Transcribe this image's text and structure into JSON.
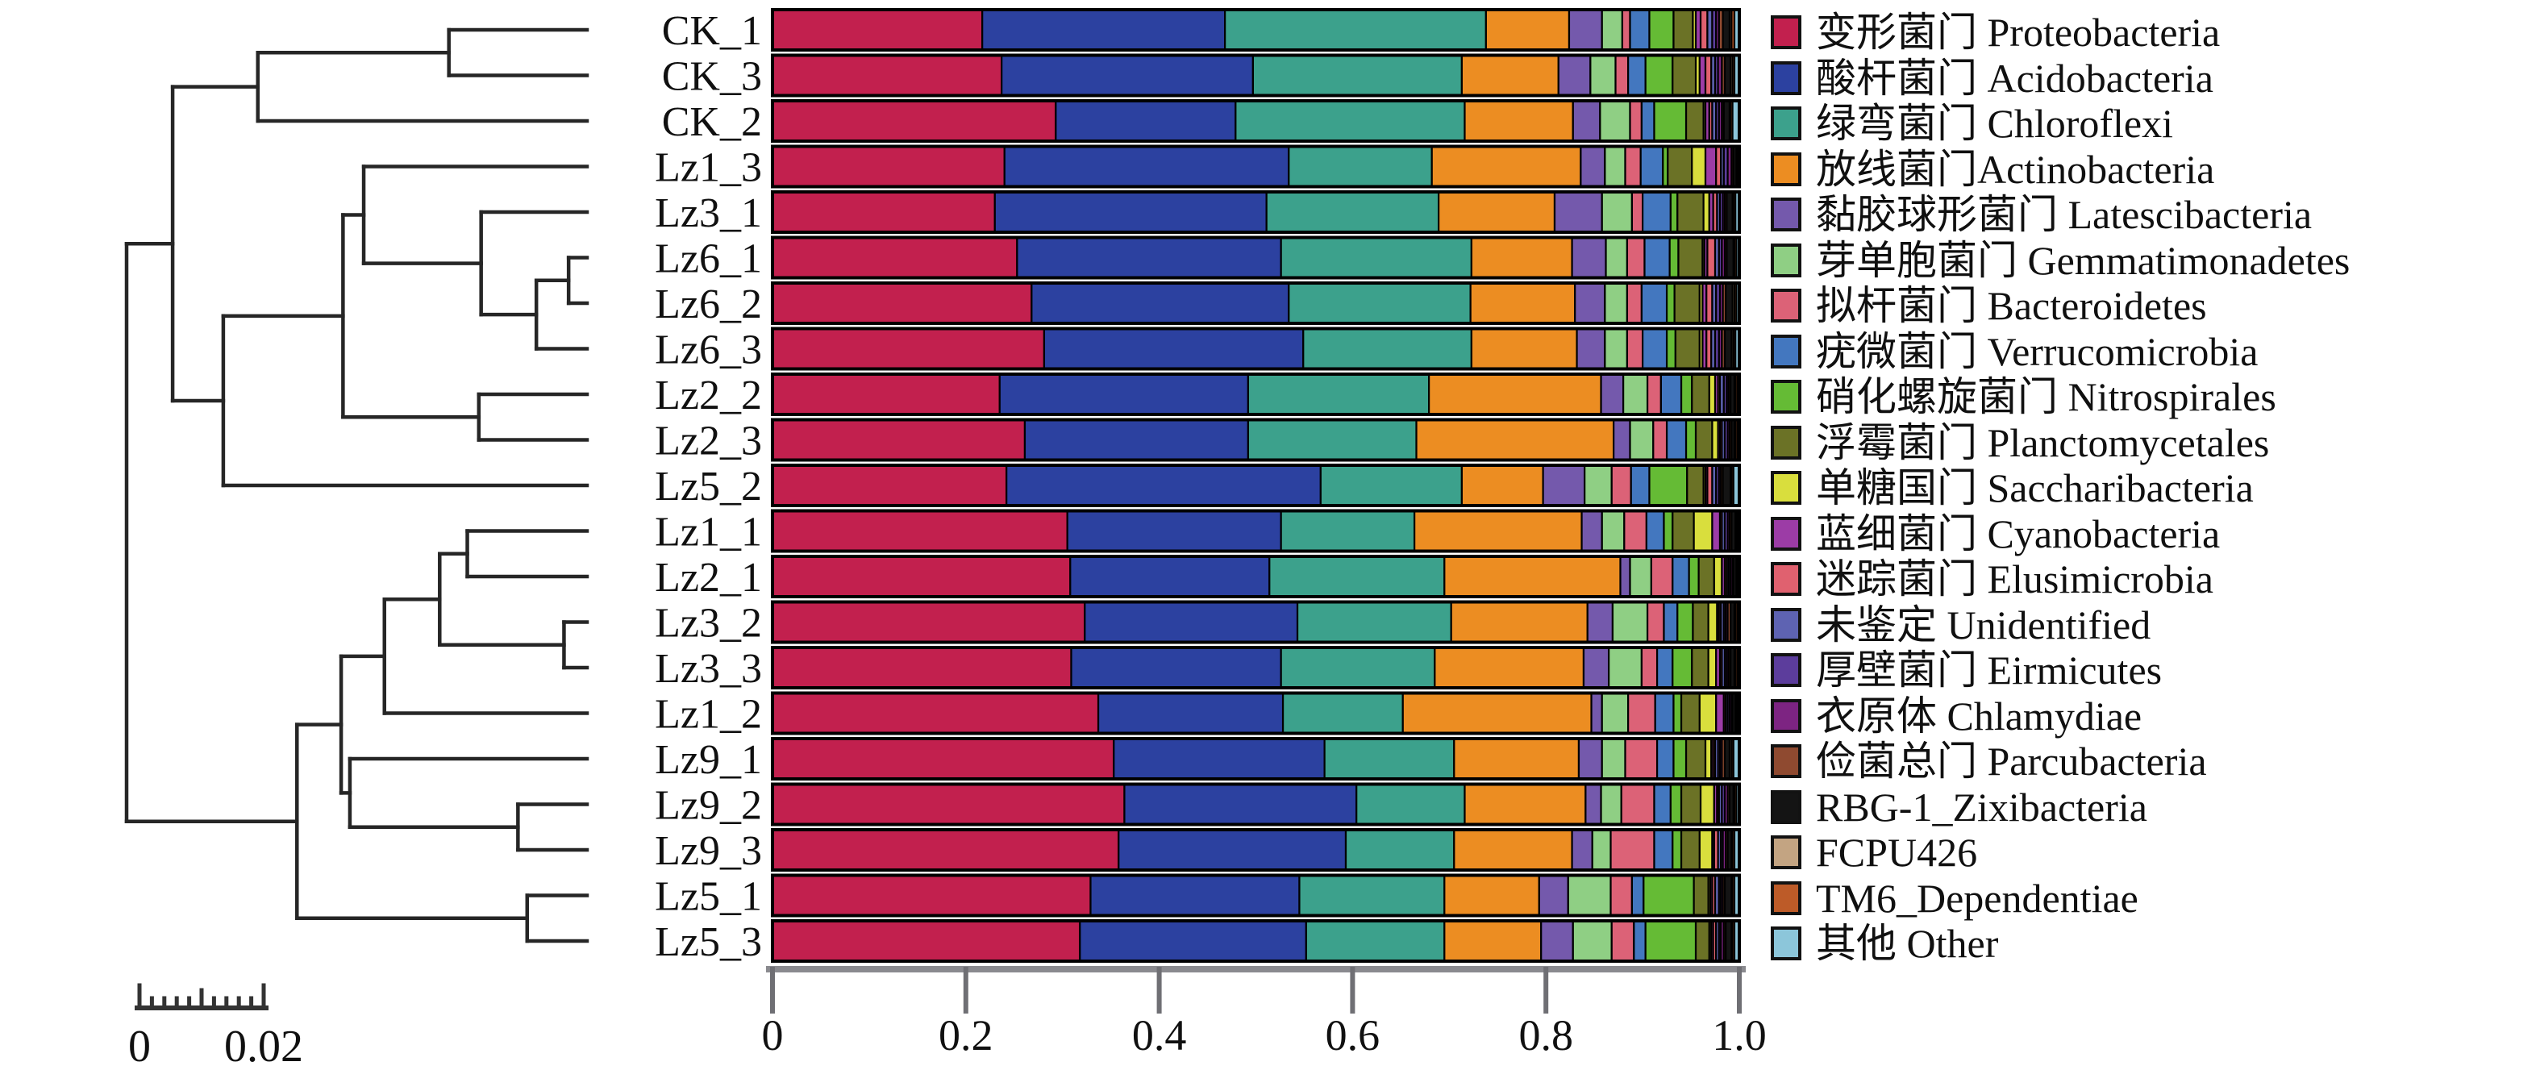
{
  "figure": {
    "background": "#ffffff",
    "description": "Hierarchical clustering dendrogram of soil samples with stacked-bar relative abundance of bacterial phyla and bilingual legend"
  },
  "chart_data": {
    "type": "bar",
    "orientation": "horizontal",
    "stacked": true,
    "title": "",
    "xlabel": "",
    "ylabel": "",
    "xlim": [
      0,
      1
    ],
    "x_ticks": [
      "0",
      "0.2",
      "0.4",
      "0.6",
      "0.8",
      "1.0"
    ],
    "x_tick_values": [
      0,
      0.2,
      0.4,
      0.6,
      0.8,
      1.0
    ],
    "grid": false,
    "legend_position": "right",
    "categories": [
      "CK_1",
      "CK_3",
      "CK_2",
      "Lz1_3",
      "Lz3_1",
      "Lz6_1",
      "Lz6_2",
      "Lz6_3",
      "Lz2_2",
      "Lz2_3",
      "Lz5_2",
      "Lz1_1",
      "Lz2_1",
      "Lz3_2",
      "Lz3_3",
      "Lz1_2",
      "Lz9_1",
      "Lz9_2",
      "Lz9_3",
      "Lz5_1",
      "Lz5_3"
    ],
    "phyla": [
      {
        "label": "变形菌门 Proteobacteria",
        "color": "#C2204E"
      },
      {
        "label": "酸杆菌门 Acidobacteria",
        "color": "#2C41A0"
      },
      {
        "label": "绿弯菌门 Chloroflexi",
        "color": "#3CA18C"
      },
      {
        "label": "放线菌门Actinobacteria",
        "color": "#EC8D22"
      },
      {
        "label": "黏胶球形菌门 Latescibacteria",
        "color": "#7459AC"
      },
      {
        "label": "芽单胞菌门 Gemmatimonadetes",
        "color": "#8FCF84"
      },
      {
        "label": "拟杆菌门 Bacteroidetes",
        "color": "#DC6277"
      },
      {
        "label": "疣微菌门 Verrucomicrobia",
        "color": "#4377BF"
      },
      {
        "label": "硝化螺旋菌门 Nitrospirales",
        "color": "#65BB35"
      },
      {
        "label": "浮霉菌门 Planctomycetales",
        "color": "#6B7226"
      },
      {
        "label": "单糖国门 Saccharibacteria",
        "color": "#D9DE3D"
      },
      {
        "label": "蓝细菌门 Cyanobacteria",
        "color": "#9C3CA6"
      },
      {
        "label": "迷踪菌门 Elusimicrobia",
        "color": "#E0616F"
      },
      {
        "label": "未鉴定 Unidentified",
        "color": "#5E63B2"
      },
      {
        "label": "厚壁菌门 Eirmicutes",
        "color": "#5C3D9C"
      },
      {
        "label": "衣原体 Chlamydiae",
        "color": "#7D2482"
      },
      {
        "label": "俭菌总门 Parcubacteria",
        "color": "#8F4A30"
      },
      {
        "label": "RBG-1_Zixibacteria",
        "color": "#141414"
      },
      {
        "label": "FCPU426",
        "color": "#C3A482"
      },
      {
        "label": "TM6_Dependentiae",
        "color": "#BD5B28"
      },
      {
        "label": "其他 Other",
        "color": "#8CC6DA"
      }
    ],
    "samples": [
      {
        "label": "CK_1",
        "values": [
          0.217,
          0.251,
          0.27,
          0.086,
          0.034,
          0.021,
          0.008,
          0.02,
          0.025,
          0.02,
          0.003,
          0.005,
          0.007,
          0.005,
          0.004,
          0.003,
          0.004,
          0.007,
          0.002,
          0.003,
          0.005
        ]
      },
      {
        "label": "CK_3",
        "values": [
          0.237,
          0.26,
          0.216,
          0.1,
          0.033,
          0.026,
          0.013,
          0.018,
          0.028,
          0.024,
          0.004,
          0.006,
          0.006,
          0.004,
          0.003,
          0.004,
          0.003,
          0.006,
          0.002,
          0.002,
          0.005
        ]
      },
      {
        "label": "CK_2",
        "values": [
          0.293,
          0.186,
          0.237,
          0.112,
          0.028,
          0.031,
          0.012,
          0.013,
          0.033,
          0.018,
          0.002,
          0.004,
          0.003,
          0.004,
          0.003,
          0.003,
          0.002,
          0.006,
          0.001,
          0.002,
          0.007
        ]
      },
      {
        "label": "Lz1_3",
        "values": [
          0.24,
          0.294,
          0.148,
          0.154,
          0.025,
          0.021,
          0.016,
          0.023,
          0.005,
          0.025,
          0.014,
          0.011,
          0.005,
          0.003,
          0.004,
          0.004,
          0.002,
          0.003,
          0.001,
          0.001,
          0.001
        ]
      },
      {
        "label": "Lz3_1",
        "values": [
          0.23,
          0.281,
          0.178,
          0.12,
          0.049,
          0.031,
          0.011,
          0.029,
          0.007,
          0.027,
          0.006,
          0.004,
          0.004,
          0.003,
          0.003,
          0.002,
          0.002,
          0.006,
          0.001,
          0.002,
          0.004
        ]
      },
      {
        "label": "Lz6_1",
        "values": [
          0.253,
          0.273,
          0.197,
          0.104,
          0.035,
          0.022,
          0.018,
          0.026,
          0.009,
          0.025,
          0.002,
          0.003,
          0.008,
          0.004,
          0.003,
          0.003,
          0.002,
          0.007,
          0.001,
          0.002,
          0.003
        ]
      },
      {
        "label": "Lz6_2",
        "values": [
          0.268,
          0.266,
          0.188,
          0.108,
          0.031,
          0.023,
          0.015,
          0.026,
          0.008,
          0.026,
          0.003,
          0.004,
          0.006,
          0.004,
          0.004,
          0.003,
          0.003,
          0.007,
          0.002,
          0.002,
          0.003
        ]
      },
      {
        "label": "Lz6_3",
        "values": [
          0.281,
          0.268,
          0.174,
          0.109,
          0.029,
          0.023,
          0.016,
          0.025,
          0.009,
          0.025,
          0.003,
          0.004,
          0.005,
          0.004,
          0.004,
          0.003,
          0.003,
          0.007,
          0.002,
          0.002,
          0.004
        ]
      },
      {
        "label": "Lz2_2",
        "values": [
          0.235,
          0.257,
          0.187,
          0.178,
          0.023,
          0.025,
          0.014,
          0.021,
          0.011,
          0.018,
          0.006,
          0.003,
          0.002,
          0.004,
          0.003,
          0.002,
          0.002,
          0.004,
          0.001,
          0.002,
          0.002
        ]
      },
      {
        "label": "Lz2_3",
        "values": [
          0.261,
          0.231,
          0.174,
          0.204,
          0.017,
          0.024,
          0.014,
          0.02,
          0.01,
          0.017,
          0.006,
          0.002,
          0.002,
          0.003,
          0.003,
          0.002,
          0.002,
          0.003,
          0.001,
          0.002,
          0.002
        ]
      },
      {
        "label": "Lz5_2",
        "values": [
          0.242,
          0.325,
          0.146,
          0.084,
          0.043,
          0.028,
          0.02,
          0.019,
          0.039,
          0.017,
          0.002,
          0.002,
          0.005,
          0.004,
          0.003,
          0.002,
          0.002,
          0.008,
          0.001,
          0.002,
          0.006
        ]
      },
      {
        "label": "Lz1_1",
        "values": [
          0.305,
          0.221,
          0.138,
          0.173,
          0.021,
          0.023,
          0.023,
          0.018,
          0.009,
          0.022,
          0.019,
          0.008,
          0.002,
          0.003,
          0.003,
          0.002,
          0.002,
          0.004,
          0.001,
          0.001,
          0.002
        ]
      },
      {
        "label": "Lz2_1",
        "values": [
          0.308,
          0.206,
          0.181,
          0.182,
          0.01,
          0.022,
          0.022,
          0.017,
          0.01,
          0.016,
          0.008,
          0.003,
          0.002,
          0.002,
          0.002,
          0.002,
          0.001,
          0.003,
          0.001,
          0.001,
          0.001
        ]
      },
      {
        "label": "Lz3_2",
        "values": [
          0.323,
          0.22,
          0.159,
          0.141,
          0.026,
          0.036,
          0.017,
          0.014,
          0.016,
          0.016,
          0.009,
          0.002,
          0.002,
          0.003,
          0.002,
          0.002,
          0.003,
          0.004,
          0.001,
          0.002,
          0.002
        ]
      },
      {
        "label": "Lz3_3",
        "values": [
          0.309,
          0.217,
          0.159,
          0.154,
          0.026,
          0.034,
          0.016,
          0.016,
          0.02,
          0.017,
          0.008,
          0.004,
          0.002,
          0.003,
          0.002,
          0.002,
          0.002,
          0.004,
          0.001,
          0.002,
          0.002
        ]
      },
      {
        "label": "Lz1_2",
        "values": [
          0.337,
          0.191,
          0.124,
          0.195,
          0.011,
          0.027,
          0.028,
          0.019,
          0.008,
          0.019,
          0.017,
          0.008,
          0.002,
          0.002,
          0.002,
          0.002,
          0.001,
          0.003,
          0.001,
          0.001,
          0.002
        ]
      },
      {
        "label": "Lz9_1",
        "values": [
          0.353,
          0.218,
          0.134,
          0.129,
          0.024,
          0.024,
          0.033,
          0.017,
          0.013,
          0.02,
          0.006,
          0.002,
          0.002,
          0.003,
          0.002,
          0.002,
          0.003,
          0.005,
          0.002,
          0.002,
          0.006
        ]
      },
      {
        "label": "Lz9_2",
        "values": [
          0.364,
          0.24,
          0.112,
          0.125,
          0.016,
          0.021,
          0.034,
          0.017,
          0.011,
          0.02,
          0.014,
          0.003,
          0.002,
          0.003,
          0.003,
          0.003,
          0.002,
          0.004,
          0.001,
          0.002,
          0.003
        ]
      },
      {
        "label": "Lz9_3",
        "values": [
          0.358,
          0.235,
          0.112,
          0.122,
          0.021,
          0.019,
          0.045,
          0.019,
          0.009,
          0.019,
          0.013,
          0.002,
          0.004,
          0.003,
          0.002,
          0.003,
          0.002,
          0.004,
          0.001,
          0.002,
          0.005
        ]
      },
      {
        "label": "Lz5_1",
        "values": [
          0.329,
          0.216,
          0.15,
          0.098,
          0.03,
          0.044,
          0.022,
          0.012,
          0.052,
          0.015,
          0.002,
          0.002,
          0.003,
          0.004,
          0.002,
          0.002,
          0.002,
          0.007,
          0.001,
          0.002,
          0.005
        ]
      },
      {
        "label": "Lz5_3",
        "values": [
          0.318,
          0.234,
          0.143,
          0.1,
          0.033,
          0.04,
          0.023,
          0.012,
          0.052,
          0.014,
          0.002,
          0.002,
          0.003,
          0.003,
          0.002,
          0.003,
          0.002,
          0.006,
          0.001,
          0.002,
          0.005
        ]
      }
    ],
    "dendrogram": {
      "line_color": "#262626",
      "scale_bar": {
        "labels": [
          "0",
          "0.02"
        ],
        "range": [
          0,
          0.02
        ],
        "minor_step": 0.002
      },
      "tree": {
        "x": 0.0,
        "children": [
          {
            "x": 0.1,
            "children": [
              {
                "x": 0.285,
                "children": [
                  {
                    "x": 0.7,
                    "children": [
                      {
                        "leaf": 0
                      },
                      {
                        "leaf": 1
                      }
                    ]
                  },
                  {
                    "leaf": 2
                  }
                ]
              },
              {
                "x": 0.21,
                "children": [
                  {
                    "x": 0.47,
                    "children": [
                      {
                        "x": 0.515,
                        "children": [
                          {
                            "leaf": 3
                          },
                          {
                            "x": 0.77,
                            "children": [
                              {
                                "leaf": 4
                              },
                              {
                                "x": 0.89,
                                "children": [
                                  {
                                    "x": 0.96,
                                    "children": [
                                      {
                                        "leaf": 5
                                      },
                                      {
                                        "leaf": 6
                                      }
                                    ]
                                  },
                                  {
                                    "leaf": 7
                                  }
                                ]
                              }
                            ]
                          }
                        ]
                      },
                      {
                        "x": 0.765,
                        "children": [
                          {
                            "leaf": 8
                          },
                          {
                            "leaf": 9
                          }
                        ]
                      }
                    ]
                  },
                  {
                    "leaf": 10
                  }
                ]
              }
            ]
          },
          {
            "x": 0.37,
            "children": [
              {
                "x": 0.466,
                "children": [
                  {
                    "x": 0.56,
                    "children": [
                      {
                        "x": 0.68,
                        "children": [
                          {
                            "x": 0.74,
                            "children": [
                              {
                                "leaf": 11
                              },
                              {
                                "leaf": 12
                              }
                            ]
                          },
                          {
                            "x": 0.95,
                            "children": [
                              {
                                "leaf": 13
                              },
                              {
                                "leaf": 14
                              }
                            ]
                          }
                        ]
                      },
                      {
                        "leaf": 15
                      }
                    ]
                  },
                  {
                    "x": 0.485,
                    "children": [
                      {
                        "leaf": 16
                      },
                      {
                        "x": 0.85,
                        "children": [
                          {
                            "leaf": 17
                          },
                          {
                            "leaf": 18
                          }
                        ]
                      }
                    ]
                  }
                ]
              },
              {
                "x": 0.87,
                "children": [
                  {
                    "leaf": 19
                  },
                  {
                    "leaf": 20
                  }
                ]
              }
            ]
          }
        ]
      }
    }
  }
}
